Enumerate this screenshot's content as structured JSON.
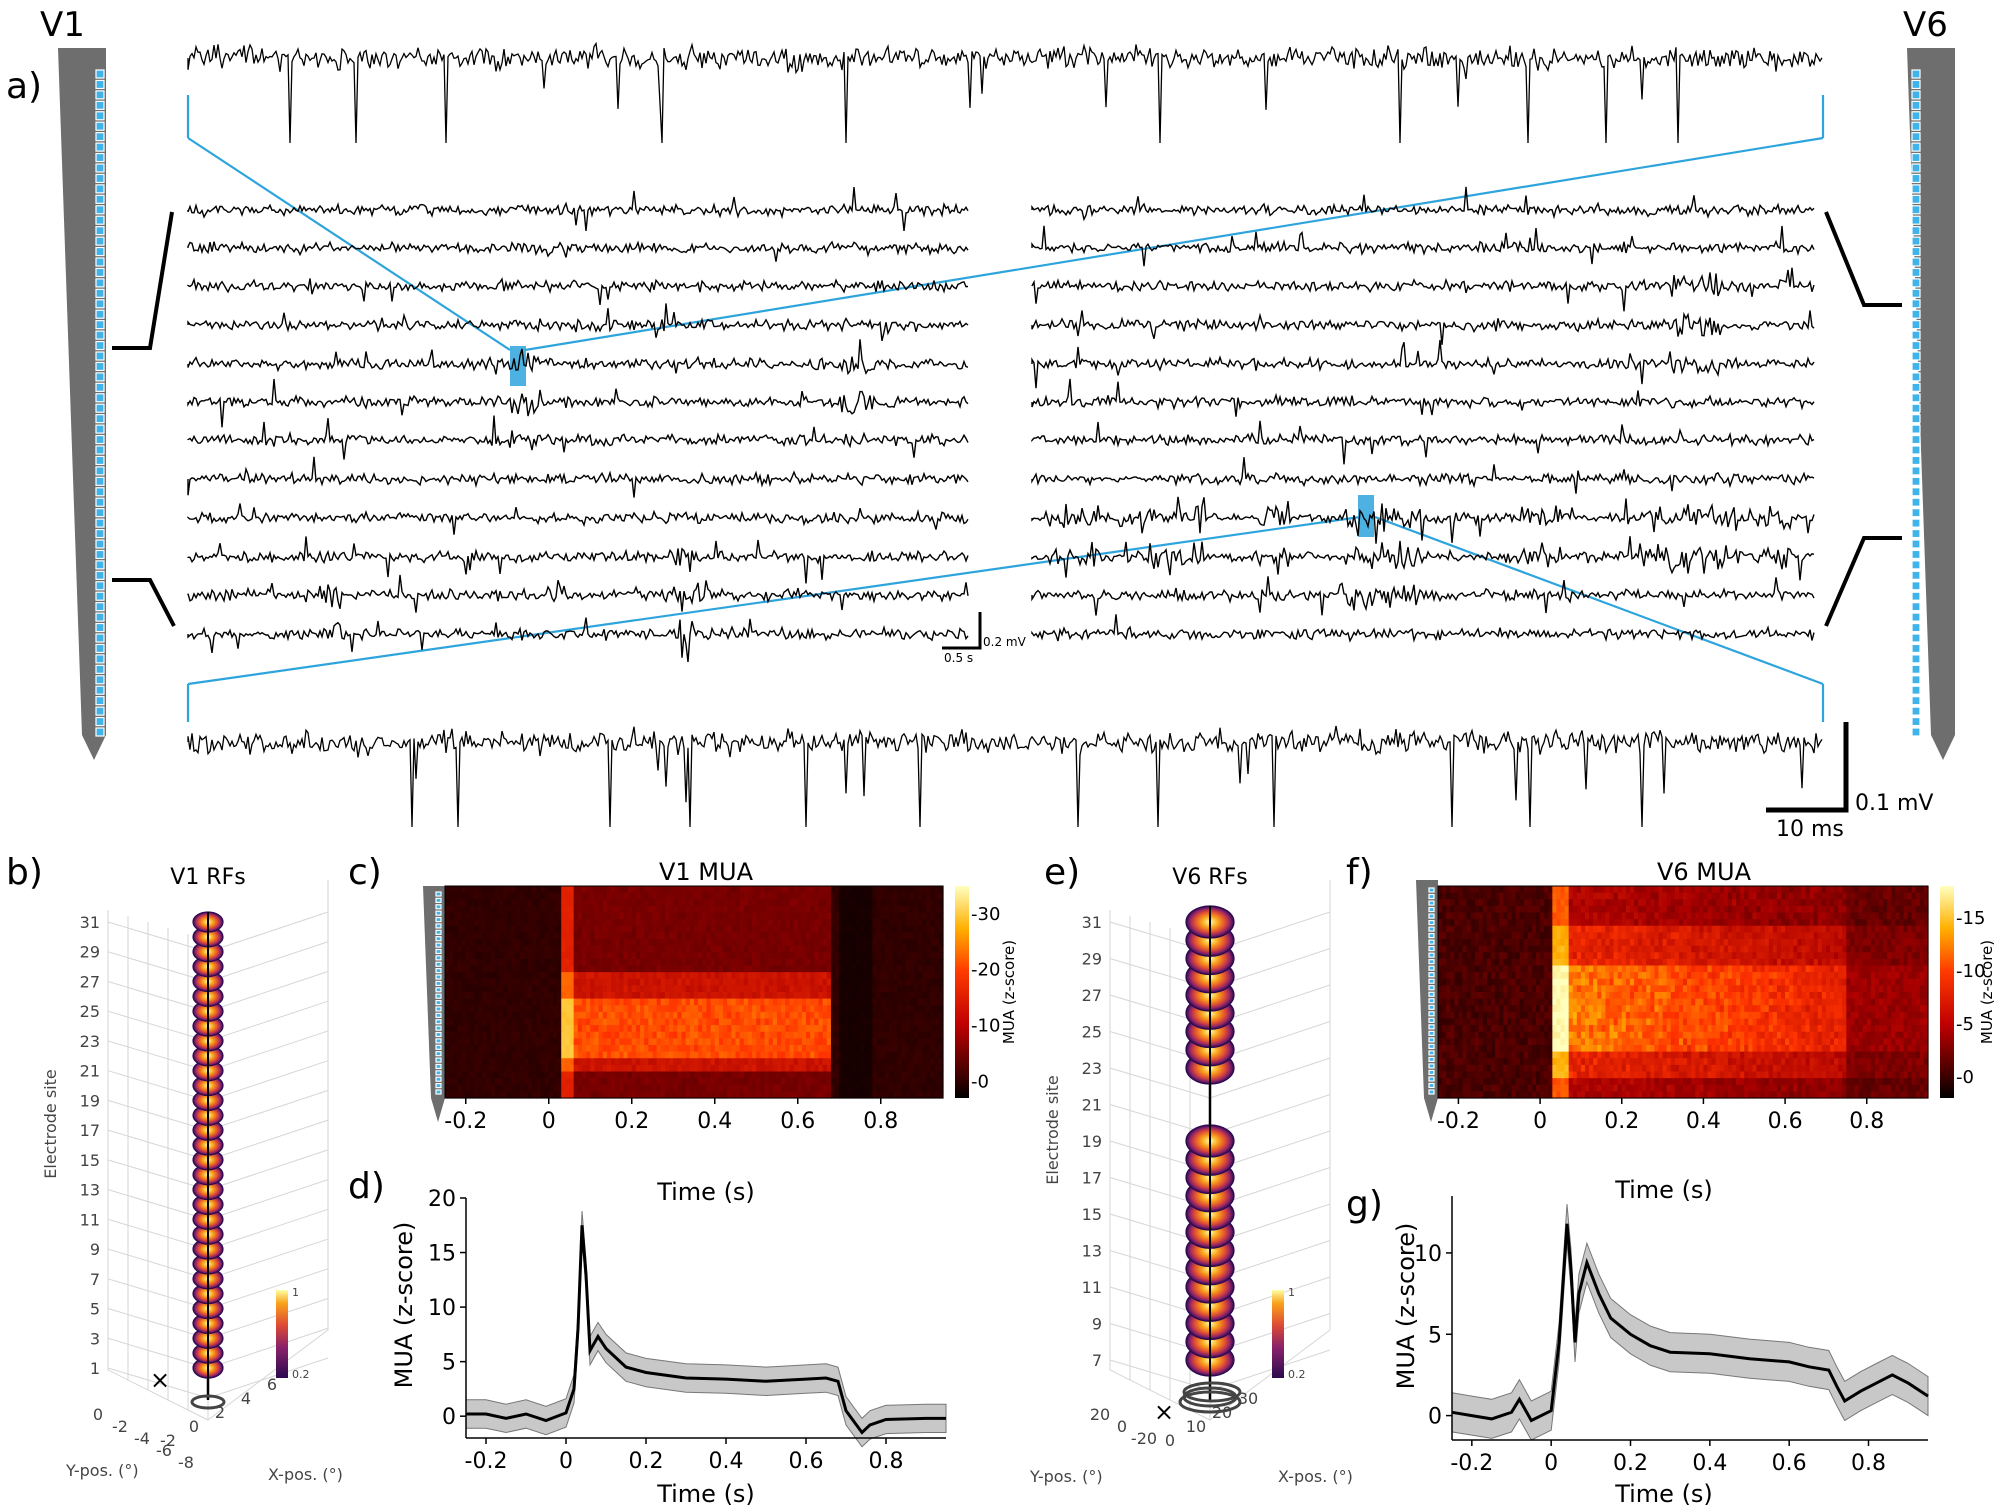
{
  "panels": {
    "a": "a)",
    "b": "b)",
    "c": "c)",
    "d": "d)",
    "e": "e)",
    "f": "f)",
    "g": "g)"
  },
  "probes": {
    "left": "V1",
    "right": "V6"
  },
  "scales": {
    "raw_time": "0.5 s",
    "raw_amp": "0.2 mV",
    "zoom_time": "10 ms",
    "zoom_amp": "0.1 mV"
  },
  "colors": {
    "accent": "#2ea4dc",
    "trace": "#000000",
    "probe": "#6e6e6e"
  },
  "chart_data": [
    {
      "id": "b",
      "type": "scatter",
      "title": "V1 RFs",
      "zlabel": "Electrode site",
      "xlabel": "X-pos. (°)",
      "ylabel": "Y-pos. (°)",
      "site_ticks": [
        "31",
        "29",
        "27",
        "25",
        "23",
        "21",
        "19",
        "17",
        "15",
        "13",
        "11",
        "9",
        "7",
        "5",
        "3",
        "1"
      ],
      "y_ticks": [
        "0",
        "-2",
        "-4",
        "-6",
        "-8"
      ],
      "x_ticks": [
        "-2",
        "0",
        "2",
        "4",
        "6"
      ],
      "colorbar": {
        "max": "1",
        "min": "0.2"
      }
    },
    {
      "id": "c",
      "type": "heatmap",
      "title": "V1 MUA",
      "xlabel": "Time (s)",
      "colorbar_label": "MUA (z-score)",
      "x_ticks": [
        "-0.2",
        "0",
        "0.2",
        "0.4",
        "0.6",
        "0.8"
      ],
      "colorbar_ticks": [
        "30",
        "20",
        "10",
        "0"
      ],
      "xlim": [
        -0.25,
        0.95
      ],
      "zlim": [
        -3,
        35
      ]
    },
    {
      "id": "d",
      "type": "line",
      "xlabel": "Time (s)",
      "ylabel": "MUA (z-score)",
      "x_ticks": [
        "-0.2",
        "0",
        "0.2",
        "0.4",
        "0.6",
        "0.8"
      ],
      "y_ticks": [
        "20",
        "15",
        "10",
        "5",
        "0"
      ],
      "xlim": [
        -0.25,
        0.95
      ],
      "ylim": [
        -2,
        20
      ],
      "x": [
        -0.25,
        -0.2,
        -0.15,
        -0.1,
        -0.05,
        0,
        0.02,
        0.03,
        0.04,
        0.05,
        0.06,
        0.08,
        0.1,
        0.15,
        0.2,
        0.3,
        0.4,
        0.5,
        0.6,
        0.65,
        0.68,
        0.7,
        0.72,
        0.74,
        0.76,
        0.8,
        0.9,
        0.95
      ],
      "y": [
        0.2,
        0.2,
        -0.2,
        0.2,
        -0.4,
        0.3,
        2.5,
        8,
        17.5,
        13,
        6,
        7.3,
        6.2,
        4.5,
        4.0,
        3.5,
        3.4,
        3.2,
        3.4,
        3.5,
        3.2,
        0.5,
        -0.5,
        -1.5,
        -0.8,
        -0.3,
        -0.2,
        -0.2
      ]
    },
    {
      "id": "e",
      "type": "scatter",
      "title": "V6 RFs",
      "zlabel": "Electrode site",
      "xlabel": "X-pos. (°)",
      "ylabel": "Y-pos. (°)",
      "site_ticks": [
        "31",
        "29",
        "27",
        "25",
        "23",
        "21",
        "19",
        "17",
        "15",
        "13",
        "11",
        "9",
        "7"
      ],
      "y_ticks": [
        "20",
        "0",
        "-20"
      ],
      "x_ticks": [
        "0",
        "10",
        "20",
        "30"
      ],
      "colorbar": {
        "max": "1",
        "min": "0.2"
      }
    },
    {
      "id": "f",
      "type": "heatmap",
      "title": "V6 MUA",
      "xlabel": "Time (s)",
      "colorbar_label": "MUA (z-score)",
      "x_ticks": [
        "-0.2",
        "0",
        "0.2",
        "0.4",
        "0.6",
        "0.8"
      ],
      "colorbar_ticks": [
        "15",
        "10",
        "5",
        "0"
      ],
      "xlim": [
        -0.25,
        0.95
      ],
      "zlim": [
        -2,
        18
      ]
    },
    {
      "id": "g",
      "type": "line",
      "xlabel": "Time (s)",
      "ylabel": "MUA (z-score)",
      "x_ticks": [
        "-0.2",
        "0",
        "0.2",
        "0.4",
        "0.6",
        "0.8"
      ],
      "y_ticks": [
        "10",
        "5",
        "0"
      ],
      "xlim": [
        -0.25,
        0.95
      ],
      "ylim": [
        -1.5,
        13.5
      ],
      "x": [
        -0.25,
        -0.2,
        -0.15,
        -0.1,
        -0.08,
        -0.05,
        0,
        0.02,
        0.04,
        0.05,
        0.06,
        0.07,
        0.09,
        0.12,
        0.15,
        0.2,
        0.25,
        0.3,
        0.4,
        0.5,
        0.6,
        0.65,
        0.7,
        0.72,
        0.74,
        0.78,
        0.82,
        0.86,
        0.9,
        0.95
      ],
      "y": [
        0.2,
        0,
        -0.2,
        0.2,
        1,
        -0.3,
        0.3,
        4.5,
        11.8,
        9,
        4.5,
        7.5,
        9.4,
        7.5,
        6.0,
        5.0,
        4.3,
        3.9,
        3.8,
        3.5,
        3.3,
        3.0,
        2.8,
        1.8,
        0.9,
        1.5,
        2.0,
        2.5,
        2.0,
        1.2
      ]
    }
  ]
}
